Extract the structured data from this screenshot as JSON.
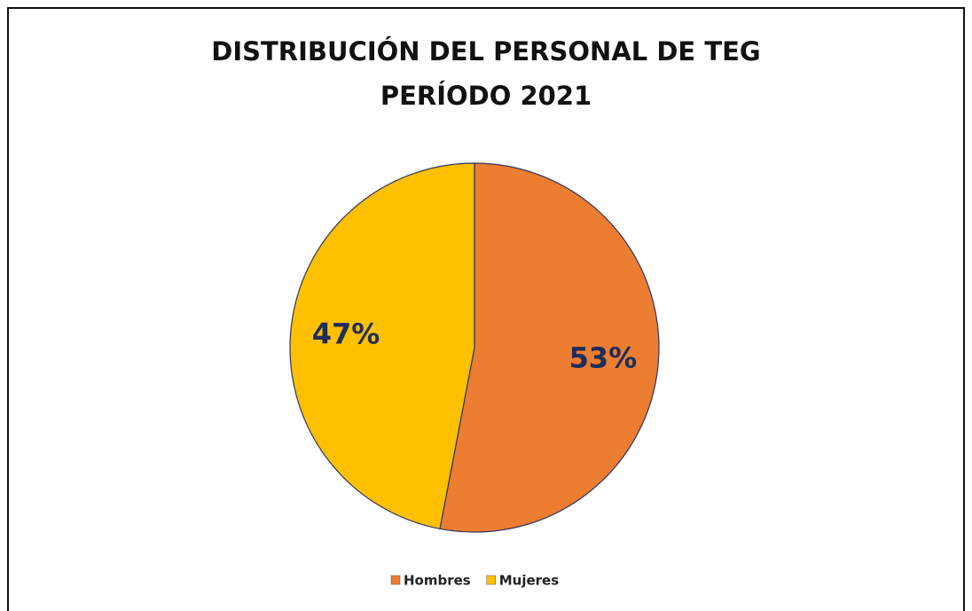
{
  "chart_data": {
    "type": "pie",
    "title": "DISTRIBUCIÓN DEL PERSONAL DE TEG",
    "subtitle": "PERÍODO 2021",
    "categories": [
      "Hombres",
      "Mujeres"
    ],
    "values": [
      53,
      47
    ],
    "value_labels": [
      "53%",
      "47%"
    ],
    "colors": [
      "#ed7d31",
      "#ffc000"
    ],
    "legend": "bottom"
  }
}
